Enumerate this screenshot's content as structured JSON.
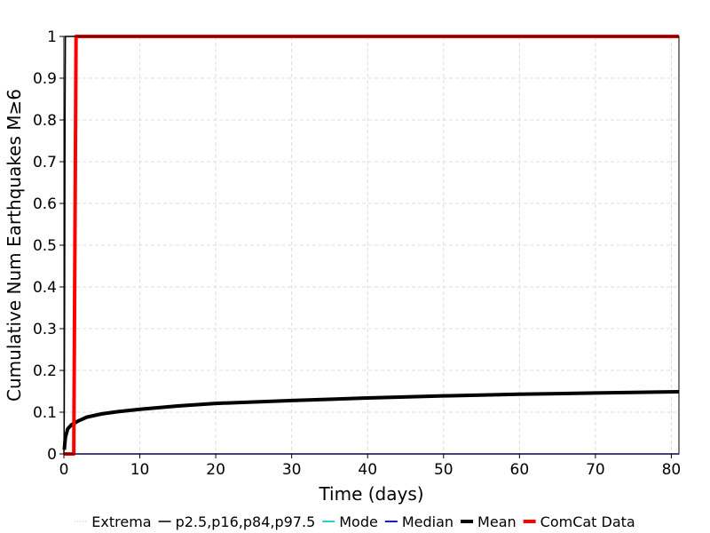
{
  "chart_data": {
    "type": "line",
    "xlabel": "Time (days)",
    "ylabel": "Cumulative Num Earthquakes M≥6",
    "xlim": [
      0,
      81
    ],
    "ylim": [
      0,
      1
    ],
    "x_ticks": [
      0,
      10,
      20,
      30,
      40,
      50,
      60,
      70,
      80
    ],
    "x_tick_labels": [
      "0",
      "10",
      "20",
      "30",
      "40",
      "50",
      "60",
      "70",
      "80"
    ],
    "y_ticks": [
      0,
      0.1,
      0.2,
      0.3,
      0.4,
      0.5,
      0.6,
      0.7,
      0.8,
      0.9,
      1
    ],
    "y_tick_labels": [
      "0",
      "0.1",
      "0.2",
      "0.3",
      "0.4",
      "0.5",
      "0.6",
      "0.7",
      "0.8",
      "0.9",
      "1"
    ],
    "grid": true,
    "legend_position": "bottom",
    "legend": [
      {
        "label": "Extrema",
        "color": "#bbbbbb",
        "style": "dotted"
      },
      {
        "label": "p2.5,p16,p84,p97.5",
        "color": "#000000",
        "style": "thin"
      },
      {
        "label": "Mode",
        "color": "#33cccc",
        "style": "solid"
      },
      {
        "label": "Median",
        "color": "#1a1acc",
        "style": "solid"
      },
      {
        "label": "Mean",
        "color": "#000000",
        "style": "thick"
      },
      {
        "label": "ComCat Data",
        "color": "#ff0000",
        "style": "thick"
      }
    ],
    "series": [
      {
        "name": "p2.5,p16,p84,p97.5",
        "color": "#000000",
        "x": [
          0,
          0.05,
          0.1,
          0.15,
          0.2,
          0.25,
          81
        ],
        "y": [
          0,
          0.1,
          0.4,
          0.8,
          1,
          1,
          1
        ]
      },
      {
        "name": "Median",
        "color": "#1a1acc",
        "x": [
          0,
          81
        ],
        "y": [
          0,
          0
        ]
      },
      {
        "name": "Mean",
        "color": "#000000",
        "x": [
          0.05,
          0.2,
          0.5,
          1,
          2,
          3,
          5,
          7,
          10,
          15,
          20,
          30,
          40,
          50,
          60,
          70,
          81
        ],
        "y": [
          0.01,
          0.04,
          0.06,
          0.07,
          0.08,
          0.088,
          0.096,
          0.101,
          0.107,
          0.115,
          0.121,
          0.128,
          0.134,
          0.139,
          0.143,
          0.146,
          0.149
        ]
      },
      {
        "name": "ComCat Data",
        "color": "#ff0000",
        "x": [
          0,
          1.3,
          1.6,
          81
        ],
        "y": [
          0,
          0,
          1,
          1
        ]
      }
    ]
  }
}
